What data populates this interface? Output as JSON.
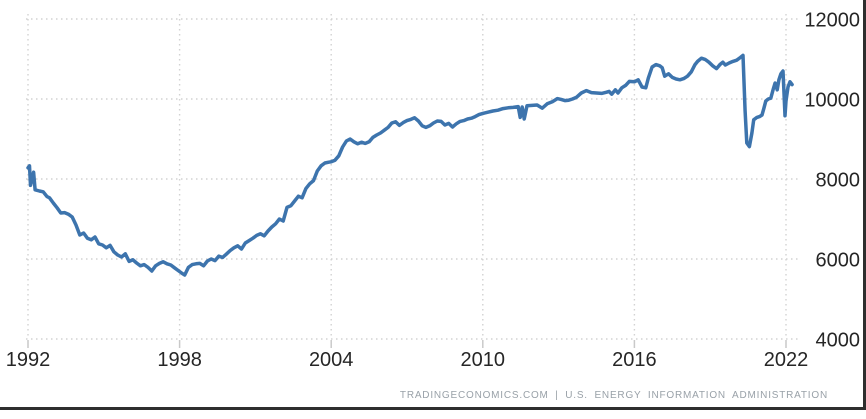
{
  "footer": {
    "attribution": "TRADINGECONOMICS.COM | U.S. ENERGY INFORMATION ADMINISTRATION"
  },
  "chart_data": {
    "type": "line",
    "title": "",
    "xlabel": "",
    "ylabel": "",
    "legend_position": "none",
    "grid_style": "dotted",
    "grid_color": "#d2d2d2",
    "tick_color": "#c9c9c9",
    "axis_label_color": "#262626",
    "x_ticks": [
      1992,
      1998,
      2004,
      2010,
      2016,
      2022
    ],
    "y_ticks": [
      12000,
      10000,
      8000,
      6000,
      4000
    ],
    "x_range": [
      1992,
      2022.4
    ],
    "y_range": [
      4000,
      12000
    ],
    "series": [
      {
        "name": "series-1",
        "color": "#3d74ad",
        "points": [
          [
            1992.0,
            8280
          ],
          [
            1992.06,
            8330
          ],
          [
            1992.1,
            7840
          ],
          [
            1992.22,
            8170
          ],
          [
            1992.28,
            7730
          ],
          [
            1992.45,
            7700
          ],
          [
            1992.6,
            7680
          ],
          [
            1992.75,
            7560
          ],
          [
            1992.85,
            7530
          ],
          [
            1993.0,
            7400
          ],
          [
            1993.15,
            7280
          ],
          [
            1993.3,
            7150
          ],
          [
            1993.45,
            7160
          ],
          [
            1993.6,
            7120
          ],
          [
            1993.75,
            7050
          ],
          [
            1993.9,
            6850
          ],
          [
            1994.05,
            6600
          ],
          [
            1994.2,
            6650
          ],
          [
            1994.35,
            6520
          ],
          [
            1994.5,
            6480
          ],
          [
            1994.65,
            6550
          ],
          [
            1994.8,
            6380
          ],
          [
            1994.95,
            6350
          ],
          [
            1995.1,
            6280
          ],
          [
            1995.25,
            6340
          ],
          [
            1995.4,
            6180
          ],
          [
            1995.55,
            6100
          ],
          [
            1995.7,
            6050
          ],
          [
            1995.85,
            6130
          ],
          [
            1996.0,
            5940
          ],
          [
            1996.15,
            5980
          ],
          [
            1996.3,
            5900
          ],
          [
            1996.45,
            5830
          ],
          [
            1996.6,
            5860
          ],
          [
            1996.75,
            5790
          ],
          [
            1996.9,
            5700
          ],
          [
            1997.05,
            5830
          ],
          [
            1997.2,
            5890
          ],
          [
            1997.35,
            5930
          ],
          [
            1997.5,
            5880
          ],
          [
            1997.65,
            5850
          ],
          [
            1997.8,
            5780
          ],
          [
            1997.95,
            5710
          ],
          [
            1998.1,
            5640
          ],
          [
            1998.2,
            5600
          ],
          [
            1998.35,
            5790
          ],
          [
            1998.5,
            5860
          ],
          [
            1998.65,
            5880
          ],
          [
            1998.8,
            5890
          ],
          [
            1998.95,
            5830
          ],
          [
            1999.1,
            5950
          ],
          [
            1999.25,
            6000
          ],
          [
            1999.4,
            5960
          ],
          [
            1999.55,
            6070
          ],
          [
            1999.7,
            6040
          ],
          [
            1999.85,
            6120
          ],
          [
            2000.0,
            6210
          ],
          [
            2000.15,
            6280
          ],
          [
            2000.3,
            6330
          ],
          [
            2000.45,
            6250
          ],
          [
            2000.6,
            6400
          ],
          [
            2000.75,
            6460
          ],
          [
            2000.9,
            6520
          ],
          [
            2001.05,
            6590
          ],
          [
            2001.2,
            6630
          ],
          [
            2001.35,
            6580
          ],
          [
            2001.5,
            6700
          ],
          [
            2001.65,
            6800
          ],
          [
            2001.8,
            6880
          ],
          [
            2001.95,
            7000
          ],
          [
            2002.1,
            6950
          ],
          [
            2002.25,
            7290
          ],
          [
            2002.4,
            7330
          ],
          [
            2002.55,
            7450
          ],
          [
            2002.7,
            7570
          ],
          [
            2002.85,
            7530
          ],
          [
            2003.0,
            7760
          ],
          [
            2003.15,
            7880
          ],
          [
            2003.3,
            7960
          ],
          [
            2003.45,
            8200
          ],
          [
            2003.6,
            8330
          ],
          [
            2003.75,
            8400
          ],
          [
            2003.9,
            8420
          ],
          [
            2004.0,
            8430
          ],
          [
            2004.15,
            8470
          ],
          [
            2004.3,
            8580
          ],
          [
            2004.45,
            8800
          ],
          [
            2004.6,
            8950
          ],
          [
            2004.75,
            9000
          ],
          [
            2004.9,
            8930
          ],
          [
            2005.05,
            8880
          ],
          [
            2005.2,
            8920
          ],
          [
            2005.35,
            8890
          ],
          [
            2005.5,
            8930
          ],
          [
            2005.65,
            9040
          ],
          [
            2005.8,
            9100
          ],
          [
            2005.95,
            9150
          ],
          [
            2006.1,
            9220
          ],
          [
            2006.25,
            9290
          ],
          [
            2006.4,
            9400
          ],
          [
            2006.55,
            9430
          ],
          [
            2006.7,
            9340
          ],
          [
            2006.85,
            9410
          ],
          [
            2007.0,
            9460
          ],
          [
            2007.15,
            9490
          ],
          [
            2007.3,
            9530
          ],
          [
            2007.45,
            9450
          ],
          [
            2007.6,
            9330
          ],
          [
            2007.75,
            9290
          ],
          [
            2007.9,
            9330
          ],
          [
            2008.05,
            9400
          ],
          [
            2008.2,
            9450
          ],
          [
            2008.35,
            9440
          ],
          [
            2008.5,
            9350
          ],
          [
            2008.65,
            9390
          ],
          [
            2008.8,
            9300
          ],
          [
            2008.95,
            9380
          ],
          [
            2009.1,
            9440
          ],
          [
            2009.25,
            9460
          ],
          [
            2009.4,
            9500
          ],
          [
            2009.55,
            9520
          ],
          [
            2009.7,
            9560
          ],
          [
            2009.85,
            9610
          ],
          [
            2010.0,
            9640
          ],
          [
            2010.2,
            9670
          ],
          [
            2010.4,
            9700
          ],
          [
            2010.6,
            9720
          ],
          [
            2010.8,
            9760
          ],
          [
            2011.0,
            9780
          ],
          [
            2011.2,
            9790
          ],
          [
            2011.4,
            9810
          ],
          [
            2011.48,
            9540
          ],
          [
            2011.56,
            9800
          ],
          [
            2011.64,
            9500
          ],
          [
            2011.75,
            9830
          ],
          [
            2011.95,
            9840
          ],
          [
            2012.15,
            9850
          ],
          [
            2012.35,
            9770
          ],
          [
            2012.55,
            9880
          ],
          [
            2012.75,
            9930
          ],
          [
            2012.95,
            10010
          ],
          [
            2013.1,
            9990
          ],
          [
            2013.25,
            9960
          ],
          [
            2013.4,
            9970
          ],
          [
            2013.55,
            10000
          ],
          [
            2013.7,
            10040
          ],
          [
            2013.9,
            10150
          ],
          [
            2014.1,
            10210
          ],
          [
            2014.3,
            10160
          ],
          [
            2014.5,
            10150
          ],
          [
            2014.7,
            10140
          ],
          [
            2014.9,
            10170
          ],
          [
            2015.0,
            10190
          ],
          [
            2015.1,
            10120
          ],
          [
            2015.25,
            10230
          ],
          [
            2015.35,
            10150
          ],
          [
            2015.5,
            10280
          ],
          [
            2015.65,
            10340
          ],
          [
            2015.8,
            10440
          ],
          [
            2016.0,
            10430
          ],
          [
            2016.15,
            10480
          ],
          [
            2016.3,
            10300
          ],
          [
            2016.45,
            10280
          ],
          [
            2016.55,
            10520
          ],
          [
            2016.7,
            10800
          ],
          [
            2016.85,
            10860
          ],
          [
            2017.0,
            10830
          ],
          [
            2017.1,
            10780
          ],
          [
            2017.2,
            10570
          ],
          [
            2017.35,
            10630
          ],
          [
            2017.5,
            10540
          ],
          [
            2017.65,
            10500
          ],
          [
            2017.8,
            10480
          ],
          [
            2017.95,
            10510
          ],
          [
            2018.1,
            10570
          ],
          [
            2018.25,
            10680
          ],
          [
            2018.4,
            10860
          ],
          [
            2018.5,
            10940
          ],
          [
            2018.65,
            11020
          ],
          [
            2018.8,
            10990
          ],
          [
            2018.95,
            10920
          ],
          [
            2019.1,
            10830
          ],
          [
            2019.25,
            10760
          ],
          [
            2019.4,
            10870
          ],
          [
            2019.5,
            10920
          ],
          [
            2019.6,
            10850
          ],
          [
            2019.75,
            10900
          ],
          [
            2019.9,
            10940
          ],
          [
            2020.05,
            10970
          ],
          [
            2020.2,
            11040
          ],
          [
            2020.3,
            11090
          ],
          [
            2020.38,
            9700
          ],
          [
            2020.45,
            8900
          ],
          [
            2020.55,
            8810
          ],
          [
            2020.65,
            9150
          ],
          [
            2020.72,
            9480
          ],
          [
            2020.85,
            9540
          ],
          [
            2020.95,
            9560
          ],
          [
            2021.05,
            9600
          ],
          [
            2021.12,
            9760
          ],
          [
            2021.2,
            9950
          ],
          [
            2021.3,
            10000
          ],
          [
            2021.4,
            10020
          ],
          [
            2021.5,
            10260
          ],
          [
            2021.57,
            10400
          ],
          [
            2021.65,
            10230
          ],
          [
            2021.72,
            10480
          ],
          [
            2021.8,
            10630
          ],
          [
            2021.88,
            10700
          ],
          [
            2021.92,
            10150
          ],
          [
            2021.96,
            9580
          ],
          [
            2022.0,
            9950
          ],
          [
            2022.08,
            10300
          ],
          [
            2022.16,
            10430
          ],
          [
            2022.24,
            10360
          ]
        ]
      }
    ]
  }
}
